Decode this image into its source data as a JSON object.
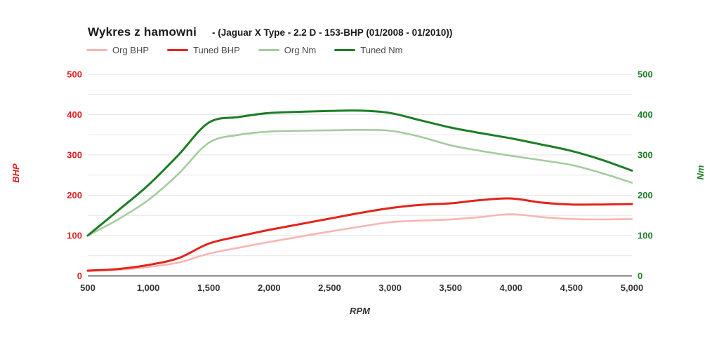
{
  "header": {
    "title": "Wykres z hamowni",
    "subtitle": "- (Jaguar X Type - 2.2 D - 153-BHP (01/2008 - 01/2010))"
  },
  "legend": [
    {
      "label": "Org BHP",
      "color": "#f7b6b3"
    },
    {
      "label": "Tuned BHP",
      "color": "#e2241c"
    },
    {
      "label": "Org Nm",
      "color": "#a4cb9e"
    },
    {
      "label": "Tuned Nm",
      "color": "#1d7d25"
    }
  ],
  "colors": {
    "left_axis": "#e02020",
    "right_axis": "#1d7d25",
    "x_axis_text": "#333333",
    "gridline": "#e6e6e6",
    "baseline": "#7a7a7a"
  },
  "chart_data": {
    "type": "line",
    "title": "Wykres z hamowni - (Jaguar X Type - 2.2 D - 153-BHP (01/2008 - 01/2010))",
    "xlabel": "RPM",
    "x_ticks": [
      500,
      1000,
      1500,
      2000,
      2500,
      3000,
      3500,
      4000,
      4500,
      5000
    ],
    "xlim": [
      500,
      5000
    ],
    "ylim": [
      0,
      500
    ],
    "grid_step": 50,
    "grid": true,
    "legend_position": "top",
    "left_axis": {
      "label": "BHP",
      "color": "#e02020",
      "ticks": [
        0,
        100,
        200,
        300,
        400,
        500
      ]
    },
    "right_axis": {
      "label": "Nm",
      "color": "#1d7d25",
      "ticks": [
        0,
        100,
        200,
        300,
        400,
        500
      ]
    },
    "x": [
      500,
      750,
      1000,
      1250,
      1500,
      1750,
      2000,
      2250,
      2500,
      2750,
      3000,
      3250,
      3500,
      3750,
      4000,
      4250,
      4500,
      4750,
      5000
    ],
    "series": [
      {
        "name": "Org BHP",
        "axis": "left",
        "color": "#f7b6b3",
        "width": 2.6,
        "values": [
          12,
          15,
          22,
          33,
          55,
          70,
          84,
          97,
          110,
          122,
          133,
          137,
          140,
          146,
          153,
          146,
          141,
          140,
          141
        ]
      },
      {
        "name": "Tuned BHP",
        "axis": "left",
        "color": "#e2241c",
        "width": 3,
        "values": [
          13,
          17,
          27,
          44,
          80,
          98,
          114,
          128,
          142,
          156,
          168,
          176,
          180,
          188,
          192,
          182,
          177,
          177,
          178
        ]
      },
      {
        "name": "Org Nm",
        "axis": "right",
        "color": "#a4cb9e",
        "width": 2.6,
        "values": [
          100,
          140,
          188,
          253,
          330,
          350,
          358,
          360,
          361,
          362,
          360,
          345,
          324,
          310,
          298,
          287,
          275,
          255,
          231
        ]
      },
      {
        "name": "Tuned Nm",
        "axis": "right",
        "color": "#1d7d25",
        "width": 3,
        "values": [
          100,
          162,
          225,
          300,
          380,
          394,
          404,
          407,
          409,
          410,
          404,
          386,
          368,
          354,
          341,
          326,
          310,
          288,
          261
        ]
      }
    ]
  }
}
